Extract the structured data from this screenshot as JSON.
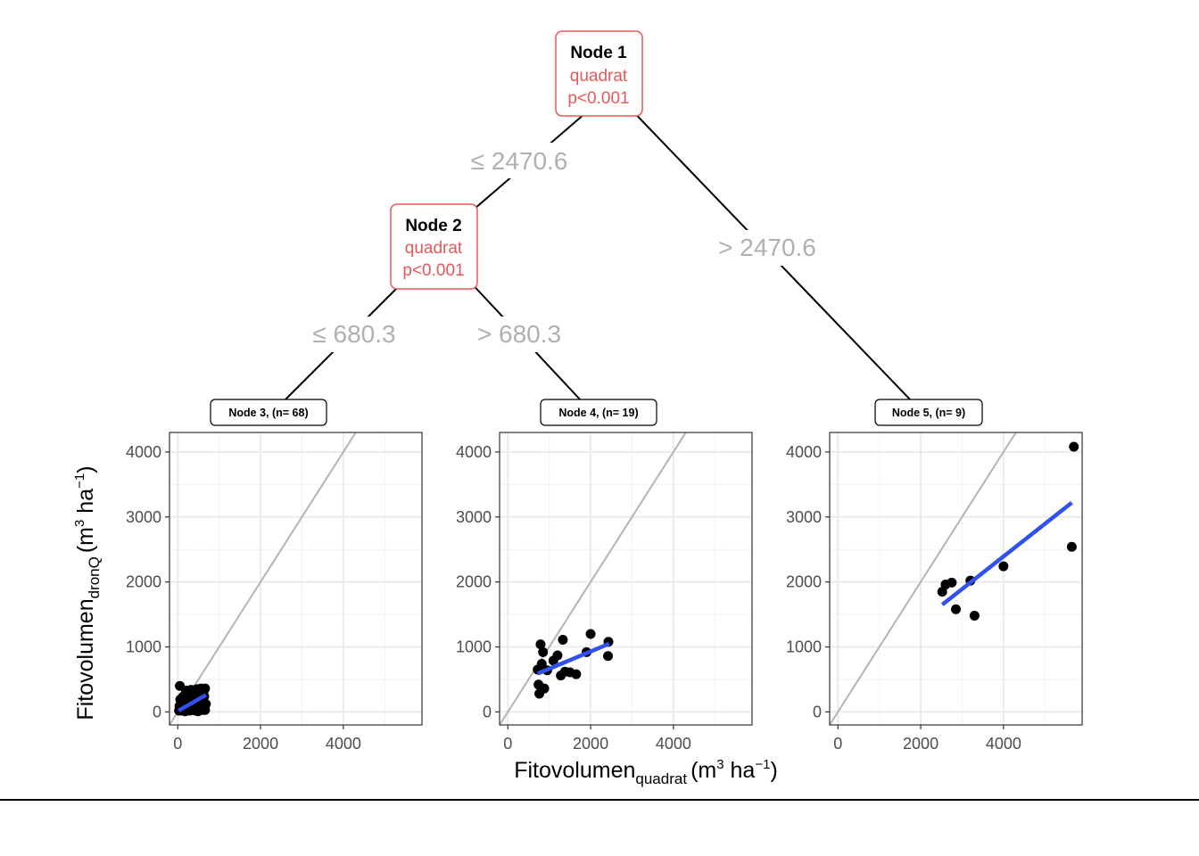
{
  "tree": {
    "node1": {
      "title": "Node 1",
      "variable": "quadrat",
      "pvalue": "p<0.001"
    },
    "node2": {
      "title": "Node 2",
      "variable": "quadrat",
      "pvalue": "p<0.001"
    },
    "edges": {
      "node1_left": "≤  2470.6",
      "node1_right": ">  2470.6",
      "node2_left": "≤  680.3",
      "node2_right": ">  680.3"
    },
    "colors": {
      "node_border": "#e8585a",
      "node_text": "#e8585a",
      "edge_label": "#b0b0b0"
    }
  },
  "axes": {
    "ylabel_main": "Fitovolumen",
    "ylabel_sub": "dronQ",
    "xlabel_main": "Fitovolumen",
    "xlabel_sub": "quadrat",
    "unit_prefix": "(m",
    "unit_sup": "3",
    "unit_mid": " ha",
    "unit_sup2": "−1",
    "unit_suffix": ")",
    "xticks": [
      "0",
      "2000",
      "4000"
    ],
    "yticks": [
      "0",
      "1000",
      "2000",
      "3000",
      "4000"
    ]
  },
  "colors": {
    "points": "#000000",
    "fit": "#3050f0",
    "identity": "#b4b4b4",
    "grid": "#ebebeb"
  },
  "chart_data": [
    {
      "type": "scatter",
      "title": "Node 3, (n= 68)",
      "xlim": [
        -200,
        5900
      ],
      "ylim": [
        -200,
        4300
      ],
      "identity_line": true,
      "fit": {
        "x": [
          20,
          680
        ],
        "y": [
          20,
          260
        ]
      },
      "points": [
        [
          50,
          400
        ],
        [
          70,
          30
        ],
        [
          90,
          80
        ],
        [
          110,
          20
        ],
        [
          130,
          150
        ],
        [
          150,
          60
        ],
        [
          160,
          250
        ],
        [
          180,
          10
        ],
        [
          190,
          120
        ],
        [
          210,
          200
        ],
        [
          220,
          40
        ],
        [
          240,
          310
        ],
        [
          260,
          90
        ],
        [
          270,
          170
        ],
        [
          290,
          20
        ],
        [
          300,
          260
        ],
        [
          320,
          340
        ],
        [
          340,
          130
        ],
        [
          360,
          60
        ],
        [
          380,
          220
        ],
        [
          400,
          300
        ],
        [
          410,
          180
        ],
        [
          430,
          20
        ],
        [
          450,
          270
        ],
        [
          460,
          350
        ],
        [
          480,
          150
        ],
        [
          500,
          80
        ],
        [
          520,
          330
        ],
        [
          540,
          220
        ],
        [
          560,
          360
        ],
        [
          580,
          40
        ],
        [
          600,
          270
        ],
        [
          620,
          190
        ],
        [
          640,
          340
        ],
        [
          660,
          360
        ],
        [
          680,
          120
        ],
        [
          650,
          50
        ],
        [
          610,
          30
        ],
        [
          570,
          100
        ],
        [
          530,
          160
        ],
        [
          490,
          10
        ],
        [
          470,
          240
        ],
        [
          440,
          200
        ],
        [
          420,
          60
        ],
        [
          390,
          330
        ],
        [
          370,
          110
        ],
        [
          350,
          250
        ],
        [
          330,
          300
        ],
        [
          310,
          40
        ],
        [
          280,
          210
        ],
        [
          250,
          130
        ],
        [
          230,
          280
        ],
        [
          200,
          50
        ],
        [
          170,
          180
        ],
        [
          140,
          110
        ],
        [
          120,
          230
        ],
        [
          100,
          160
        ],
        [
          80,
          50
        ],
        [
          60,
          190
        ],
        [
          40,
          90
        ],
        [
          30,
          20
        ],
        [
          520,
          40
        ],
        [
          560,
          180
        ],
        [
          600,
          80
        ],
        [
          640,
          240
        ],
        [
          660,
          30
        ],
        [
          200,
          330
        ],
        [
          310,
          130
        ]
      ]
    },
    {
      "type": "scatter",
      "title": "Node 4, (n= 19)",
      "xlim": [
        -200,
        5900
      ],
      "ylim": [
        -200,
        4300
      ],
      "identity_line": true,
      "fit": {
        "x": [
          720,
          2450
        ],
        "y": [
          590,
          1050
        ]
      },
      "points": [
        [
          720,
          650
        ],
        [
          740,
          420
        ],
        [
          760,
          280
        ],
        [
          790,
          1040
        ],
        [
          820,
          740
        ],
        [
          850,
          920
        ],
        [
          880,
          360
        ],
        [
          950,
          640
        ],
        [
          1100,
          790
        ],
        [
          1200,
          870
        ],
        [
          1280,
          560
        ],
        [
          1330,
          1110
        ],
        [
          1380,
          620
        ],
        [
          1500,
          610
        ],
        [
          1650,
          580
        ],
        [
          1900,
          920
        ],
        [
          2000,
          1200
        ],
        [
          2430,
          1080
        ],
        [
          2420,
          860
        ]
      ]
    },
    {
      "type": "scatter",
      "title": "Node 5, (n= 9)",
      "xlim": [
        -200,
        5900
      ],
      "ylim": [
        -200,
        4300
      ],
      "identity_line": true,
      "fit": {
        "x": [
          2520,
          5650
        ],
        "y": [
          1650,
          3220
        ]
      },
      "points": [
        [
          2520,
          1850
        ],
        [
          2600,
          1960
        ],
        [
          2750,
          1990
        ],
        [
          2850,
          1580
        ],
        [
          3200,
          2020
        ],
        [
          3300,
          1480
        ],
        [
          4000,
          2240
        ],
        [
          5650,
          2540
        ],
        [
          5700,
          4080
        ]
      ]
    }
  ]
}
